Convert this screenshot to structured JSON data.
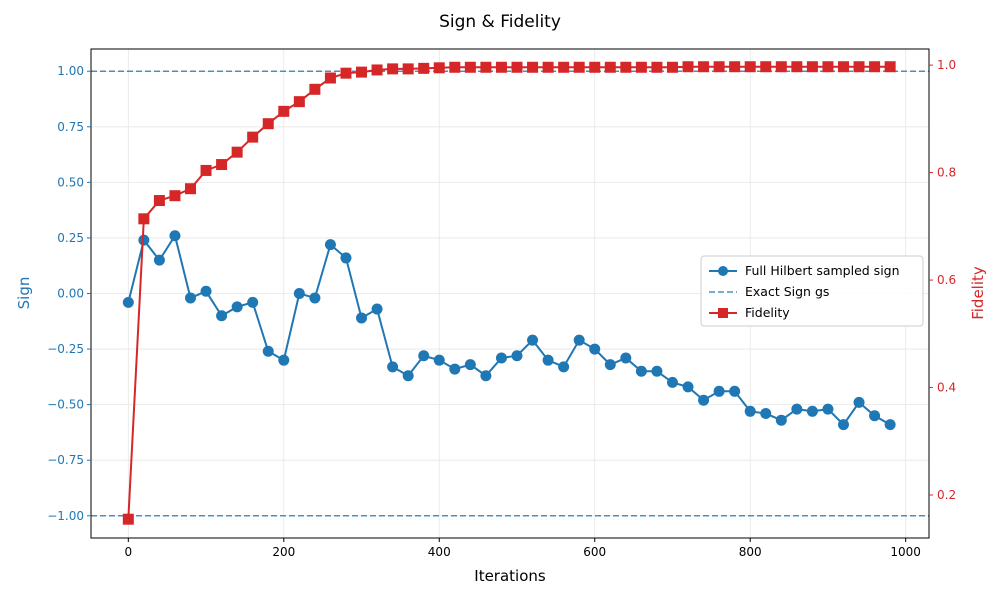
{
  "chart_data": {
    "type": "line",
    "title": "Sign & Fidelity",
    "xlabel": "Iterations",
    "ylabel_left": "Sign",
    "ylabel_right": "Fidelity",
    "xlim": [
      -48,
      1030
    ],
    "ylim_left": [
      -1.1,
      1.1
    ],
    "ylim_right": [
      0.12,
      1.03
    ],
    "x_ticks": [
      0,
      200,
      400,
      600,
      800,
      1000
    ],
    "y_ticks_left": [
      -1.0,
      -0.75,
      -0.5,
      -0.25,
      0.0,
      0.25,
      0.5,
      0.75,
      1.0
    ],
    "y_ticks_right": [
      0.2,
      0.4,
      0.6,
      0.8,
      1.0
    ],
    "y_tick_labels_left": [
      "−1.00",
      "−0.75",
      "−0.50",
      "−0.25",
      "0.00",
      "0.25",
      "0.50",
      "0.75",
      "1.00"
    ],
    "y_tick_labels_right": [
      "0.2",
      "0.4",
      "0.6",
      "0.8",
      "1.0"
    ],
    "grid": true,
    "legend_position": "center-right",
    "colors": {
      "sign": "#1f77b4",
      "fidelity": "#d62728",
      "exact": "#1f77b4"
    },
    "x": [
      0,
      20,
      40,
      60,
      80,
      100,
      120,
      140,
      160,
      180,
      200,
      220,
      240,
      260,
      280,
      300,
      320,
      340,
      360,
      380,
      400,
      420,
      440,
      460,
      480,
      500,
      520,
      540,
      560,
      580,
      600,
      620,
      640,
      660,
      680,
      700,
      720,
      740,
      760,
      780,
      800,
      820,
      840,
      860,
      880,
      900,
      920,
      940,
      960,
      980
    ],
    "series": [
      {
        "name": "Full Hilbert sampled sign",
        "axis": "left",
        "marker": "circle",
        "values": [
          -0.04,
          0.24,
          0.15,
          0.26,
          -0.02,
          0.01,
          -0.1,
          -0.06,
          -0.04,
          -0.26,
          -0.3,
          0.0,
          -0.02,
          0.22,
          0.16,
          -0.11,
          -0.07,
          -0.33,
          -0.37,
          -0.28,
          -0.3,
          -0.34,
          -0.32,
          -0.37,
          -0.29,
          -0.28,
          -0.21,
          -0.3,
          -0.33,
          -0.21,
          -0.25,
          -0.32,
          -0.29,
          -0.35,
          -0.35,
          -0.4,
          -0.42,
          -0.48,
          -0.44,
          -0.44,
          -0.53,
          -0.54,
          -0.57,
          -0.52,
          -0.53,
          -0.52,
          -0.59,
          -0.49,
          -0.55,
          -0.59
        ]
      },
      {
        "name": "Fidelity",
        "axis": "right",
        "marker": "square",
        "values": [
          0.155,
          0.714,
          0.748,
          0.757,
          0.77,
          0.804,
          0.815,
          0.838,
          0.866,
          0.891,
          0.914,
          0.932,
          0.955,
          0.976,
          0.985,
          0.987,
          0.991,
          0.993,
          0.993,
          0.994,
          0.995,
          0.996,
          0.996,
          0.996,
          0.996,
          0.996,
          0.996,
          0.996,
          0.996,
          0.996,
          0.996,
          0.996,
          0.996,
          0.996,
          0.996,
          0.996,
          0.997,
          0.997,
          0.997,
          0.997,
          0.997,
          0.997,
          0.997,
          0.997,
          0.997,
          0.997,
          0.997,
          0.997,
          0.997,
          0.997
        ]
      }
    ],
    "reference_lines": [
      {
        "name": "Exact Sign gs",
        "axis": "left",
        "values": [
          1.0,
          -1.0
        ],
        "style": "dashed"
      }
    ],
    "legend": [
      "Full Hilbert sampled sign",
      "Exact Sign gs",
      "Fidelity"
    ]
  }
}
